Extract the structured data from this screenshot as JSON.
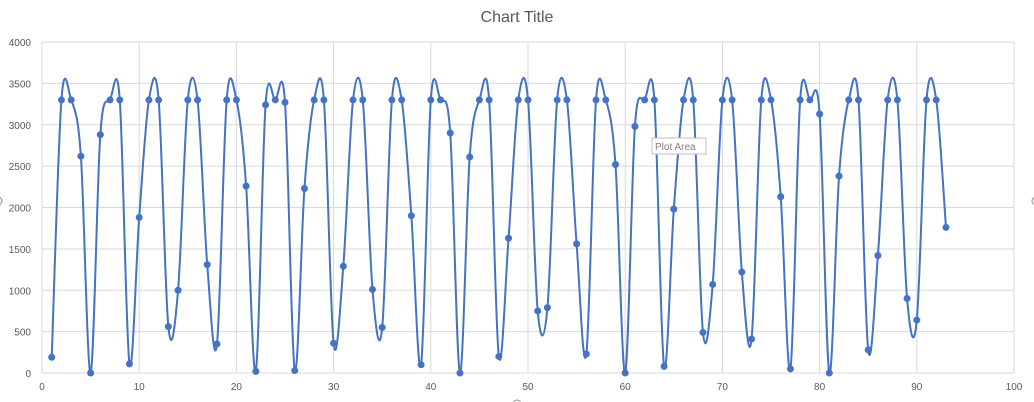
{
  "chart_data": {
    "type": "scatter",
    "title": "Chart Title",
    "xlabel": "",
    "ylabel": "",
    "xlim": [
      0,
      100
    ],
    "ylim": [
      0,
      4000
    ],
    "x_ticks": [
      "0",
      "10",
      "20",
      "30",
      "40",
      "50",
      "60",
      "70",
      "80",
      "90",
      "100"
    ],
    "y_ticks": [
      "0",
      "500",
      "1000",
      "1500",
      "2000",
      "2500",
      "3000",
      "3500",
      "4000"
    ],
    "grid": true,
    "smooth_line": true,
    "series_color": "#4472C4",
    "tooltip": "Plot Area",
    "series": [
      {
        "x": [
          1,
          2,
          3,
          4,
          5,
          6,
          7,
          8,
          9,
          10,
          11,
          12,
          13,
          14,
          15,
          16,
          17,
          18,
          19,
          20,
          21,
          22,
          23,
          24,
          25,
          26,
          27,
          28,
          29,
          30,
          31,
          32,
          33,
          34,
          35,
          36,
          37,
          38,
          39,
          40,
          41,
          42,
          43,
          44,
          45,
          46,
          47,
          48,
          49,
          50,
          51,
          52,
          53,
          54,
          55,
          56,
          57,
          58,
          59,
          60,
          61,
          62,
          63,
          64,
          65,
          66,
          67,
          68,
          69,
          70,
          71,
          72,
          73,
          74,
          75,
          76,
          77,
          78,
          79,
          80,
          81,
          82,
          83,
          84,
          85,
          86,
          87,
          88,
          89,
          90,
          91,
          92,
          93
        ],
        "y": [
          190,
          3300,
          3300,
          2620,
          0,
          2880,
          3300,
          3300,
          110,
          1880,
          3300,
          3300,
          560,
          1000,
          3300,
          3300,
          1310,
          350,
          3300,
          3300,
          2260,
          20,
          3240,
          3300,
          3270,
          30,
          2230,
          3300,
          3300,
          360,
          1290,
          3300,
          3300,
          1010,
          550,
          3300,
          3300,
          1900,
          100,
          3300,
          3300,
          2900,
          0,
          2610,
          3300,
          3300,
          200,
          1630,
          3300,
          3300,
          750,
          790,
          3300,
          3300,
          1560,
          230,
          3300,
          3300,
          2520,
          0,
          2980,
          3300,
          3300,
          80,
          1980,
          3300,
          3300,
          490,
          1070,
          3300,
          3300,
          1220,
          410,
          3300,
          3300,
          2130,
          50,
          3300,
          3300,
          3130,
          0,
          2380,
          3300,
          3300,
          280,
          1420,
          3300,
          3300,
          900,
          640,
          3300,
          3300,
          1760
        ]
      }
    ]
  }
}
